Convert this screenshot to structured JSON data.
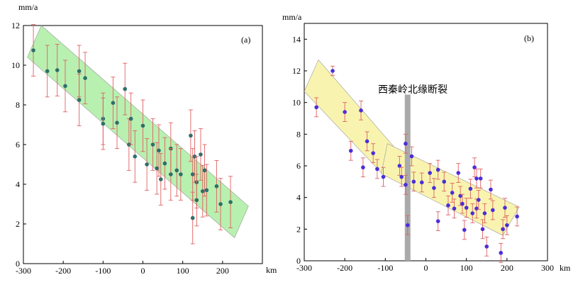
{
  "chart_data": [
    {
      "type": "scatter",
      "panel_label": "(a)",
      "ylabel": "mm/a",
      "xlabel": "km",
      "xlim": [
        -300,
        300
      ],
      "ylim": [
        0,
        12
      ],
      "xticks": [
        -300,
        -200,
        -100,
        0,
        100,
        200
      ],
      "yticks": [
        0,
        2,
        4,
        6,
        8,
        10,
        12
      ],
      "shaded_band": {
        "color": "#b8f0b0",
        "corners": [
          [
            -290,
            10.4
          ],
          [
            -255,
            12.0
          ],
          [
            265,
            2.9
          ],
          [
            230,
            1.3
          ]
        ]
      },
      "colors": {
        "marker": "#2f6f6a",
        "errorbar": "#e06060"
      },
      "points": [
        {
          "x": -275,
          "y": 10.75,
          "err": 1.3
        },
        {
          "x": -240,
          "y": 9.7,
          "err": 1.3
        },
        {
          "x": -215,
          "y": 9.75,
          "err": 1.3
        },
        {
          "x": -195,
          "y": 8.95,
          "err": 1.3
        },
        {
          "x": -160,
          "y": 9.7,
          "err": 1.3
        },
        {
          "x": -160,
          "y": 8.25,
          "err": 1.3
        },
        {
          "x": -145,
          "y": 9.35,
          "err": 1.3
        },
        {
          "x": -100,
          "y": 7.3,
          "err": 1.3
        },
        {
          "x": -100,
          "y": 7.05,
          "err": 1.3
        },
        {
          "x": -75,
          "y": 8.1,
          "err": 1.3
        },
        {
          "x": -65,
          "y": 7.1,
          "err": 1.3
        },
        {
          "x": -45,
          "y": 8.8,
          "err": 1.3
        },
        {
          "x": -35,
          "y": 6.0,
          "err": 1.3
        },
        {
          "x": -30,
          "y": 7.3,
          "err": 1.3
        },
        {
          "x": -20,
          "y": 5.4,
          "err": 1.3
        },
        {
          "x": 0,
          "y": 6.95,
          "err": 1.3
        },
        {
          "x": 10,
          "y": 5.0,
          "err": 1.3
        },
        {
          "x": 25,
          "y": 6.0,
          "err": 1.3
        },
        {
          "x": 35,
          "y": 4.8,
          "err": 1.3
        },
        {
          "x": 40,
          "y": 5.7,
          "err": 1.3
        },
        {
          "x": 45,
          "y": 4.25,
          "err": 1.3
        },
        {
          "x": 55,
          "y": 5.05,
          "err": 1.3
        },
        {
          "x": 70,
          "y": 5.8,
          "err": 1.3
        },
        {
          "x": 70,
          "y": 4.5,
          "err": 1.3
        },
        {
          "x": 85,
          "y": 4.7,
          "err": 1.3
        },
        {
          "x": 95,
          "y": 4.5,
          "err": 1.3
        },
        {
          "x": 120,
          "y": 6.45,
          "err": 1.3
        },
        {
          "x": 125,
          "y": 4.5,
          "err": 1.3
        },
        {
          "x": 130,
          "y": 5.4,
          "err": 1.3
        },
        {
          "x": 135,
          "y": 4.1,
          "err": 1.3
        },
        {
          "x": 135,
          "y": 3.2,
          "err": 1.3
        },
        {
          "x": 145,
          "y": 5.5,
          "err": 1.3
        },
        {
          "x": 150,
          "y": 3.65,
          "err": 1.3
        },
        {
          "x": 155,
          "y": 4.7,
          "err": 1.3
        },
        {
          "x": 160,
          "y": 3.7,
          "err": 1.3
        },
        {
          "x": 125,
          "y": 2.3,
          "err": 1.3
        },
        {
          "x": 185,
          "y": 3.9,
          "err": 1.3
        },
        {
          "x": 195,
          "y": 3.0,
          "err": 1.3
        },
        {
          "x": 220,
          "y": 3.1,
          "err": 1.3
        }
      ]
    },
    {
      "type": "scatter",
      "panel_label": "(b)",
      "ylabel": "mm/a",
      "xlabel": "km",
      "xlim": [
        -300,
        300
      ],
      "ylim": [
        0,
        15
      ],
      "xticks": [
        -300,
        -200,
        -100,
        0,
        100,
        200,
        300
      ],
      "yticks": [
        0,
        2,
        4,
        6,
        8,
        10,
        12,
        14
      ],
      "annotation": "西秦岭北缘断裂",
      "fault_line": {
        "x": -45,
        "y_range": [
          0,
          10.5
        ],
        "color": "#aaaaaa"
      },
      "shaded_bands": [
        {
          "color": "#f8f4b0",
          "corners": [
            [
              -300,
              10.7
            ],
            [
              -265,
              12.7
            ],
            [
              -65,
              6.8
            ],
            [
              -100,
              5.3
            ]
          ]
        },
        {
          "color": "#f8f4b0",
          "corners": [
            [
              -110,
              5.5
            ],
            [
              -95,
              7.4
            ],
            [
              230,
              3.4
            ],
            [
              190,
              1.6
            ]
          ]
        }
      ],
      "colors": {
        "marker": "#4a2fd8",
        "errorbar": "#e06060"
      },
      "points": [
        {
          "x": -270,
          "y": 9.7,
          "err": 0.6
        },
        {
          "x": -230,
          "y": 12.0,
          "err": 0.3
        },
        {
          "x": -200,
          "y": 9.4,
          "err": 0.6
        },
        {
          "x": -185,
          "y": 6.95,
          "err": 0.6
        },
        {
          "x": -160,
          "y": 9.5,
          "err": 0.6
        },
        {
          "x": -155,
          "y": 5.9,
          "err": 0.6
        },
        {
          "x": -145,
          "y": 7.55,
          "err": 0.6
        },
        {
          "x": -130,
          "y": 6.8,
          "err": 0.6
        },
        {
          "x": -120,
          "y": 5.8,
          "err": 0.6
        },
        {
          "x": -105,
          "y": 5.3,
          "err": 0.6
        },
        {
          "x": -65,
          "y": 6.0,
          "err": 0.6
        },
        {
          "x": -60,
          "y": 5.3,
          "err": 0.6
        },
        {
          "x": -50,
          "y": 7.4,
          "err": 0.6
        },
        {
          "x": -50,
          "y": 4.8,
          "err": 0.6
        },
        {
          "x": -35,
          "y": 6.6,
          "err": 0.6
        },
        {
          "x": -30,
          "y": 5.0,
          "err": 0.6
        },
        {
          "x": -45,
          "y": 2.25,
          "err": 0.6
        },
        {
          "x": -10,
          "y": 4.95,
          "err": 0.6
        },
        {
          "x": 10,
          "y": 5.55,
          "err": 0.6
        },
        {
          "x": 20,
          "y": 4.6,
          "err": 0.6
        },
        {
          "x": 30,
          "y": 5.75,
          "err": 0.6
        },
        {
          "x": 30,
          "y": 2.5,
          "err": 0.6
        },
        {
          "x": 45,
          "y": 5.0,
          "err": 0.6
        },
        {
          "x": 55,
          "y": 3.5,
          "err": 0.6
        },
        {
          "x": 65,
          "y": 4.3,
          "err": 0.6
        },
        {
          "x": 70,
          "y": 3.3,
          "err": 0.6
        },
        {
          "x": 80,
          "y": 5.55,
          "err": 0.6
        },
        {
          "x": 85,
          "y": 4.1,
          "err": 0.6
        },
        {
          "x": 90,
          "y": 3.6,
          "err": 0.6
        },
        {
          "x": 95,
          "y": 1.95,
          "err": 0.6
        },
        {
          "x": 100,
          "y": 3.35,
          "err": 0.6
        },
        {
          "x": 110,
          "y": 4.55,
          "err": 0.6
        },
        {
          "x": 115,
          "y": 3.0,
          "err": 0.6
        },
        {
          "x": 120,
          "y": 5.9,
          "err": 0.6
        },
        {
          "x": 125,
          "y": 5.2,
          "err": 0.6
        },
        {
          "x": 125,
          "y": 3.3,
          "err": 0.6
        },
        {
          "x": 130,
          "y": 3.85,
          "err": 0.6
        },
        {
          "x": 135,
          "y": 5.2,
          "err": 0.6
        },
        {
          "x": 140,
          "y": 2.0,
          "err": 0.6
        },
        {
          "x": 145,
          "y": 3.0,
          "err": 0.6
        },
        {
          "x": 150,
          "y": 0.9,
          "err": 0.6
        },
        {
          "x": 160,
          "y": 4.5,
          "err": 0.6
        },
        {
          "x": 165,
          "y": 3.2,
          "err": 0.6
        },
        {
          "x": 185,
          "y": 0.5,
          "err": 0.6
        },
        {
          "x": 195,
          "y": 3.35,
          "err": 0.6
        },
        {
          "x": 200,
          "y": 2.25,
          "err": 0.6
        },
        {
          "x": 190,
          "y": 2.0,
          "err": 0.6
        },
        {
          "x": 225,
          "y": 2.8,
          "err": 0.6
        }
      ]
    }
  ]
}
